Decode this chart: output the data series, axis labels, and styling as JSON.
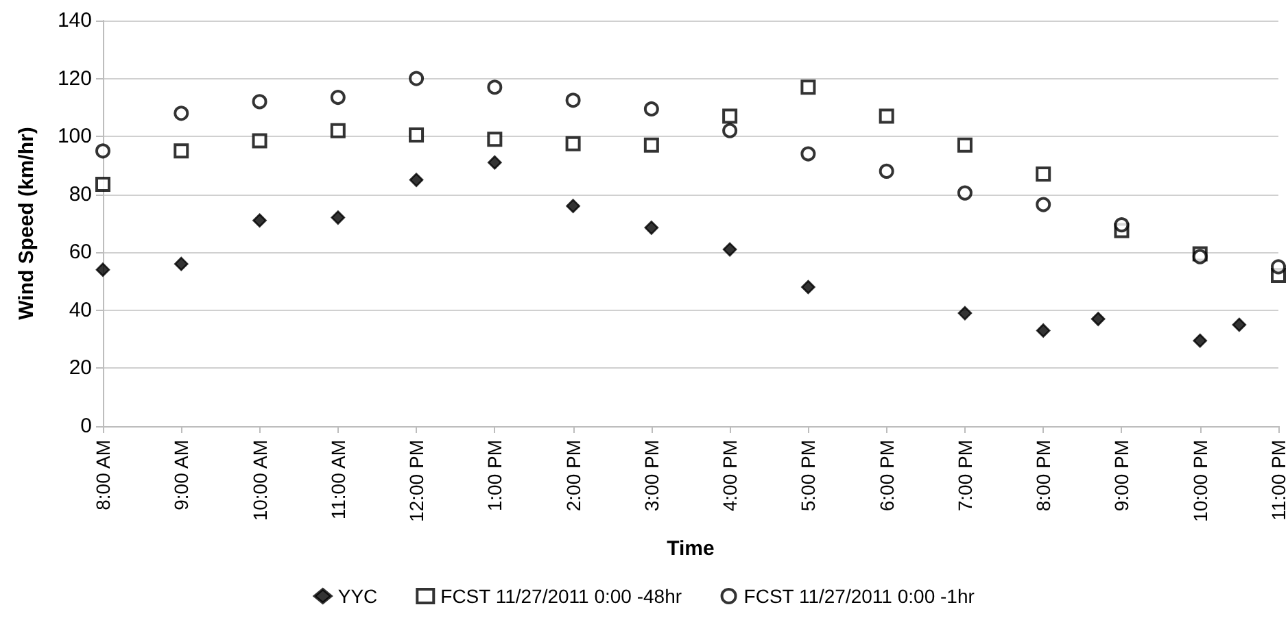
{
  "chart_data": {
    "type": "scatter",
    "xlabel": "Time",
    "ylabel": "Wind Speed (km/hr)",
    "xlim": [
      8,
      23
    ],
    "xticks": [
      {
        "value": 8,
        "label": "8:00 AM"
      },
      {
        "value": 9,
        "label": "9:00 AM"
      },
      {
        "value": 10,
        "label": "10:00 AM"
      },
      {
        "value": 11,
        "label": "11:00 AM"
      },
      {
        "value": 12,
        "label": "12:00 PM"
      },
      {
        "value": 13,
        "label": "1:00 PM"
      },
      {
        "value": 14,
        "label": "2:00 PM"
      },
      {
        "value": 15,
        "label": "3:00 PM"
      },
      {
        "value": 16,
        "label": "4:00 PM"
      },
      {
        "value": 17,
        "label": "5:00 PM"
      },
      {
        "value": 18,
        "label": "6:00 PM"
      },
      {
        "value": 19,
        "label": "7:00 PM"
      },
      {
        "value": 20,
        "label": "8:00 PM"
      },
      {
        "value": 21,
        "label": "9:00 PM"
      },
      {
        "value": 22,
        "label": "10:00 PM"
      },
      {
        "value": 23,
        "label": "11:00 PM"
      }
    ],
    "ylim": [
      0,
      140
    ],
    "yticks": [
      0,
      20,
      40,
      60,
      80,
      100,
      120,
      140
    ],
    "grid": "y",
    "legend": "bottom",
    "series": [
      {
        "name": "YYC",
        "color": "#000000",
        "marker": "diamond",
        "x": [
          8,
          9,
          10,
          11,
          12,
          13,
          14,
          15,
          16,
          17,
          19,
          20,
          20.7,
          22,
          22.5
        ],
        "values": [
          54,
          56,
          71,
          72,
          85,
          91,
          76,
          68.5,
          61,
          48,
          39,
          33,
          37,
          29.5,
          35
        ]
      },
      {
        "name": "FCST 11/27/2011 0:00 -48hr",
        "color": "#000000",
        "marker": "square",
        "x": [
          8,
          9,
          10,
          11,
          12,
          13,
          14,
          15,
          16,
          17,
          18,
          19,
          20,
          21,
          22,
          23
        ],
        "values": [
          83.5,
          95,
          98.5,
          102,
          100.5,
          99,
          97.5,
          97,
          107,
          117,
          107,
          97,
          87,
          67.5,
          59.5,
          52
        ]
      },
      {
        "name": "FCST 11/27/2011 0:00 -1hr",
        "color": "#000000",
        "marker": "circle",
        "x": [
          8,
          9,
          10,
          11,
          12,
          13,
          14,
          15,
          16,
          17,
          18,
          19,
          20,
          21,
          22,
          23
        ],
        "values": [
          95,
          108,
          112,
          113.5,
          120,
          117,
          112.5,
          109.5,
          102,
          94,
          88,
          80.5,
          76.5,
          69.5,
          58.5,
          55
        ]
      }
    ]
  }
}
